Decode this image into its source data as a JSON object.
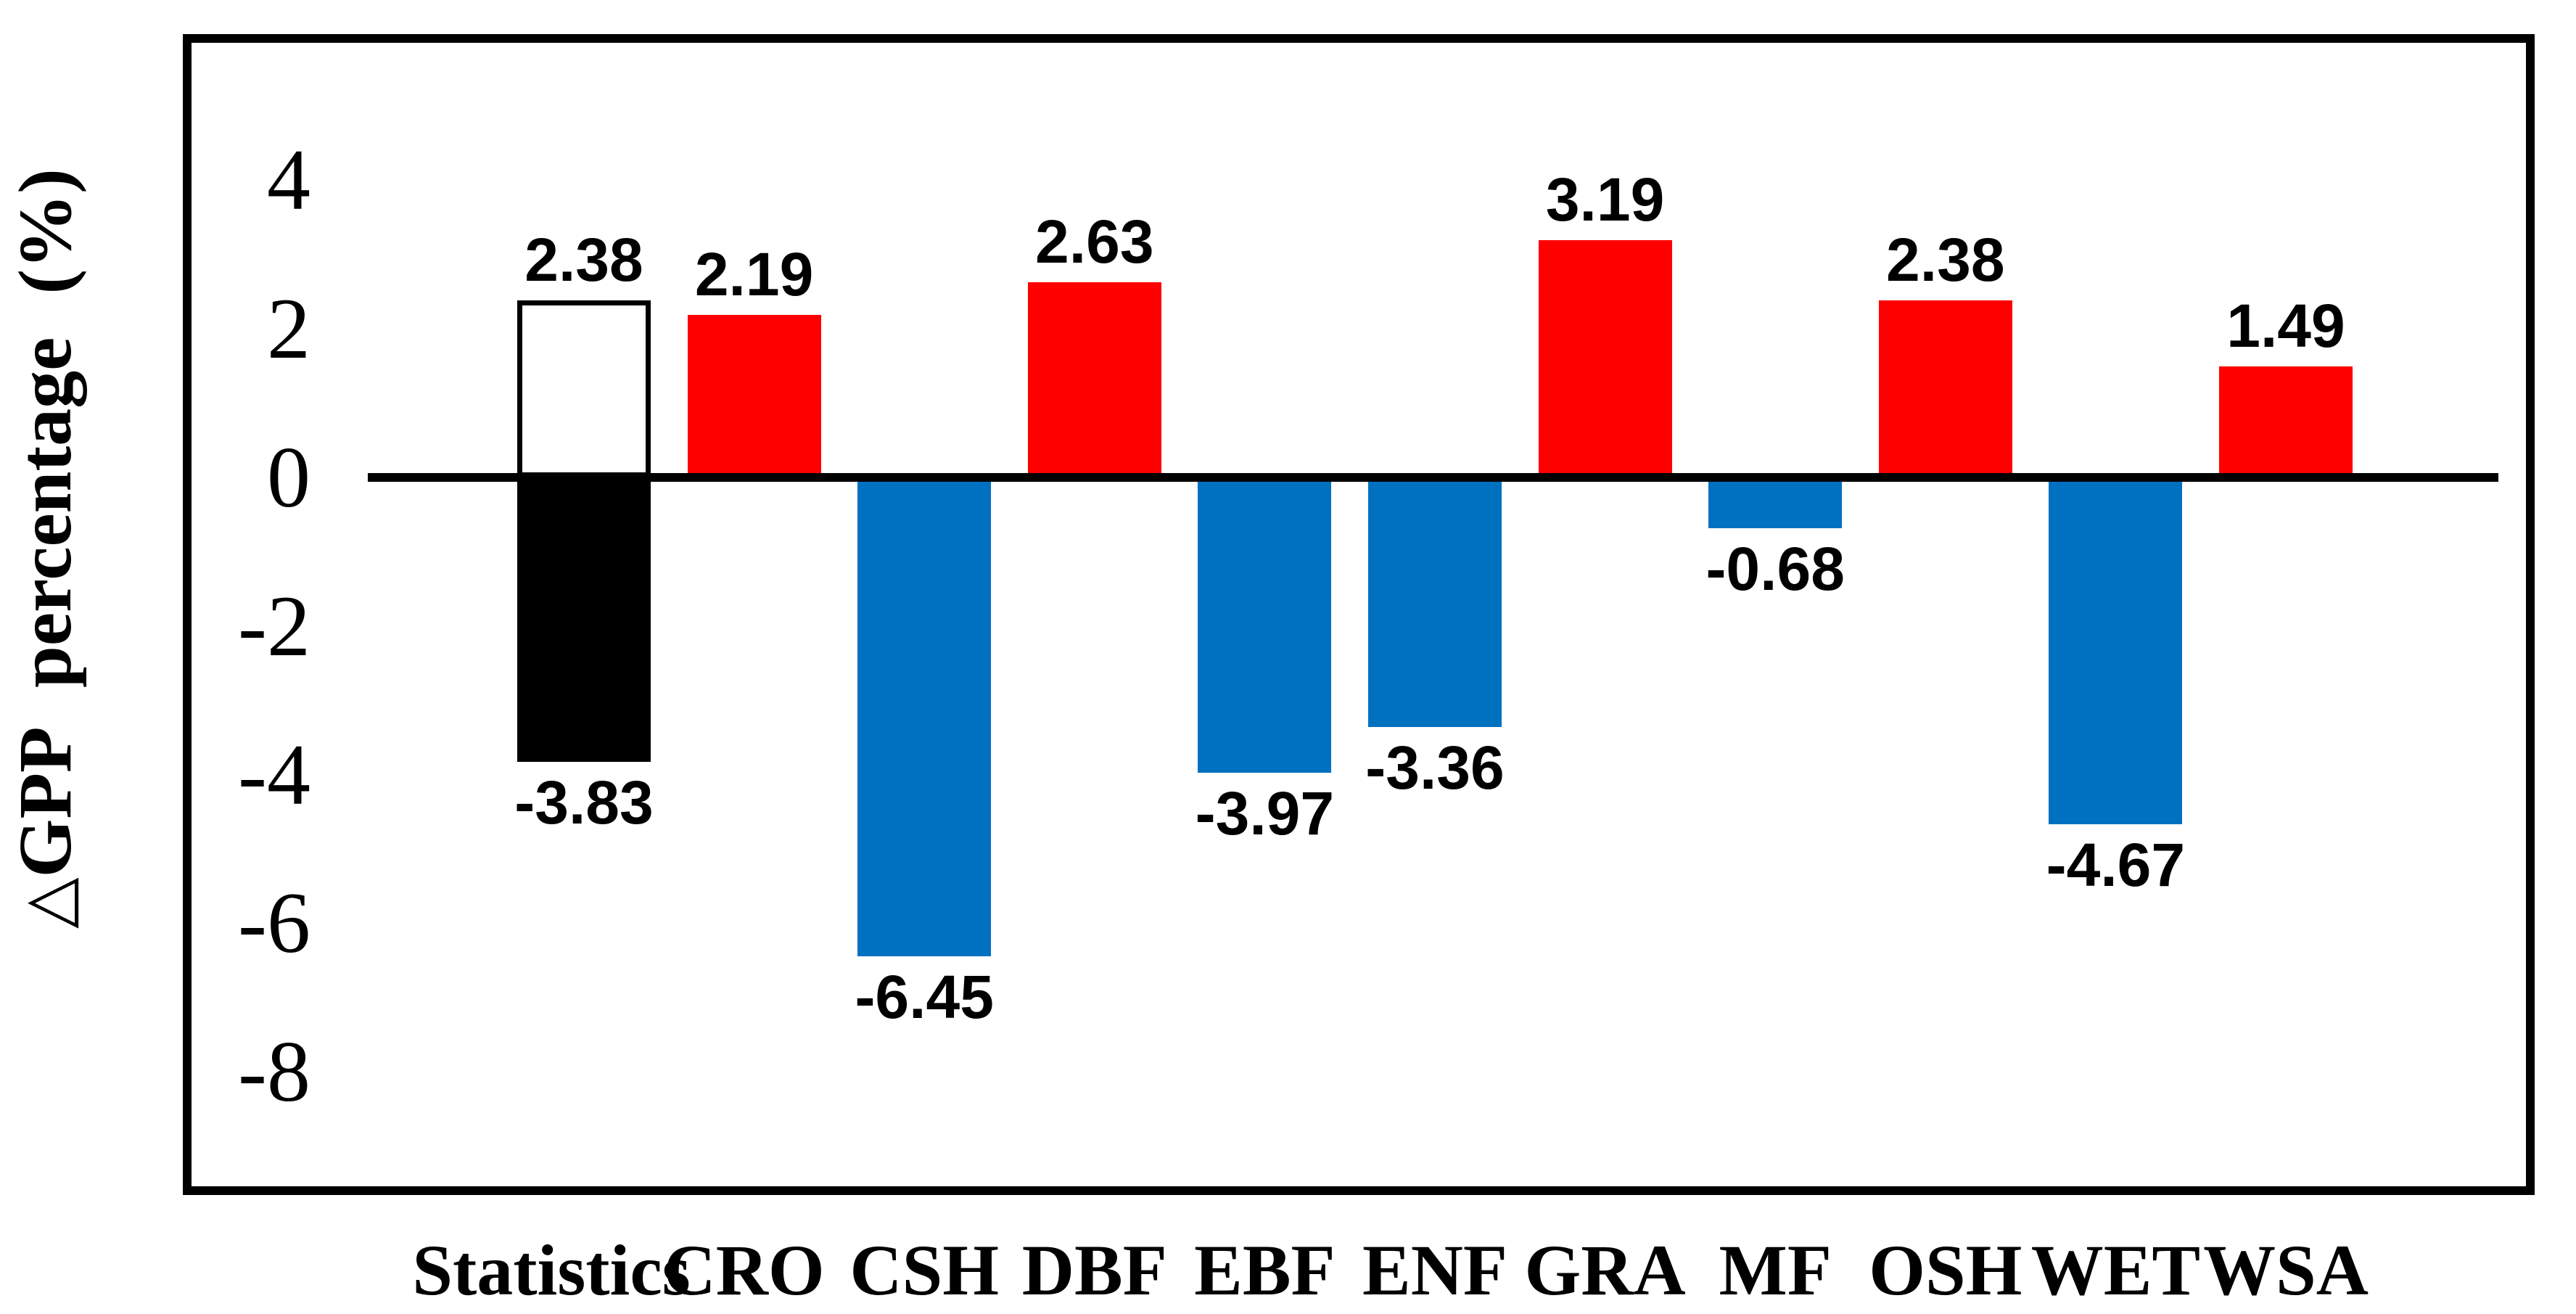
{
  "chart_data": {
    "type": "bar",
    "title": "",
    "xlabel": "",
    "ylabel": "△GPP percentage (%)",
    "y_ticks": [
      4,
      2,
      0,
      -2,
      -4,
      -6,
      -8
    ],
    "ylim": [
      -9.6,
      5.9
    ],
    "grid": false,
    "legend": false,
    "categories": [
      "Statistics",
      "CRO",
      "CSH",
      "DBF",
      "EBF",
      "ENF",
      "GRA",
      "MF",
      "OSH",
      "WET",
      "WSA"
    ],
    "bars": [
      {
        "category": "Statistics",
        "segments": [
          {
            "value": 2.38,
            "label": "2.38",
            "fill": "#ffffff",
            "outline": "#000000"
          },
          {
            "value": -3.83,
            "label": "-3.83",
            "fill": "#000000"
          }
        ]
      },
      {
        "category": "CRO",
        "segments": [
          {
            "value": 2.19,
            "label": "2.19",
            "fill": "#fe0000"
          }
        ]
      },
      {
        "category": "CSH",
        "segments": [
          {
            "value": -6.45,
            "label": "-6.45",
            "fill": "#0070c0"
          }
        ]
      },
      {
        "category": "DBF",
        "segments": [
          {
            "value": 2.63,
            "label": "2.63",
            "fill": "#fe0000"
          }
        ]
      },
      {
        "category": "EBF",
        "segments": [
          {
            "value": -3.97,
            "label": "-3.97",
            "fill": "#0070c0"
          }
        ]
      },
      {
        "category": "ENF",
        "segments": [
          {
            "value": -3.36,
            "label": "-3.36",
            "fill": "#0070c0"
          }
        ]
      },
      {
        "category": "GRA",
        "segments": [
          {
            "value": 3.19,
            "label": "3.19",
            "fill": "#fe0000"
          }
        ]
      },
      {
        "category": "MF",
        "segments": [
          {
            "value": -0.68,
            "label": "-0.68",
            "fill": "#0070c0"
          }
        ]
      },
      {
        "category": "OSH",
        "segments": [
          {
            "value": 2.38,
            "label": "2.38",
            "fill": "#fe0000"
          }
        ]
      },
      {
        "category": "WET",
        "segments": [
          {
            "value": -4.67,
            "label": "-4.67",
            "fill": "#0070c0"
          }
        ]
      },
      {
        "category": "WSA",
        "segments": [
          {
            "value": 1.49,
            "label": "1.49",
            "fill": "#fe0000"
          }
        ]
      }
    ],
    "colors": {
      "positive_bar": "#fe0000",
      "negative_bar": "#0070c0",
      "statistics_up_fill": "#ffffff",
      "statistics_down_fill": "#000000",
      "axis": "#000000",
      "background": "#ffffff"
    }
  }
}
